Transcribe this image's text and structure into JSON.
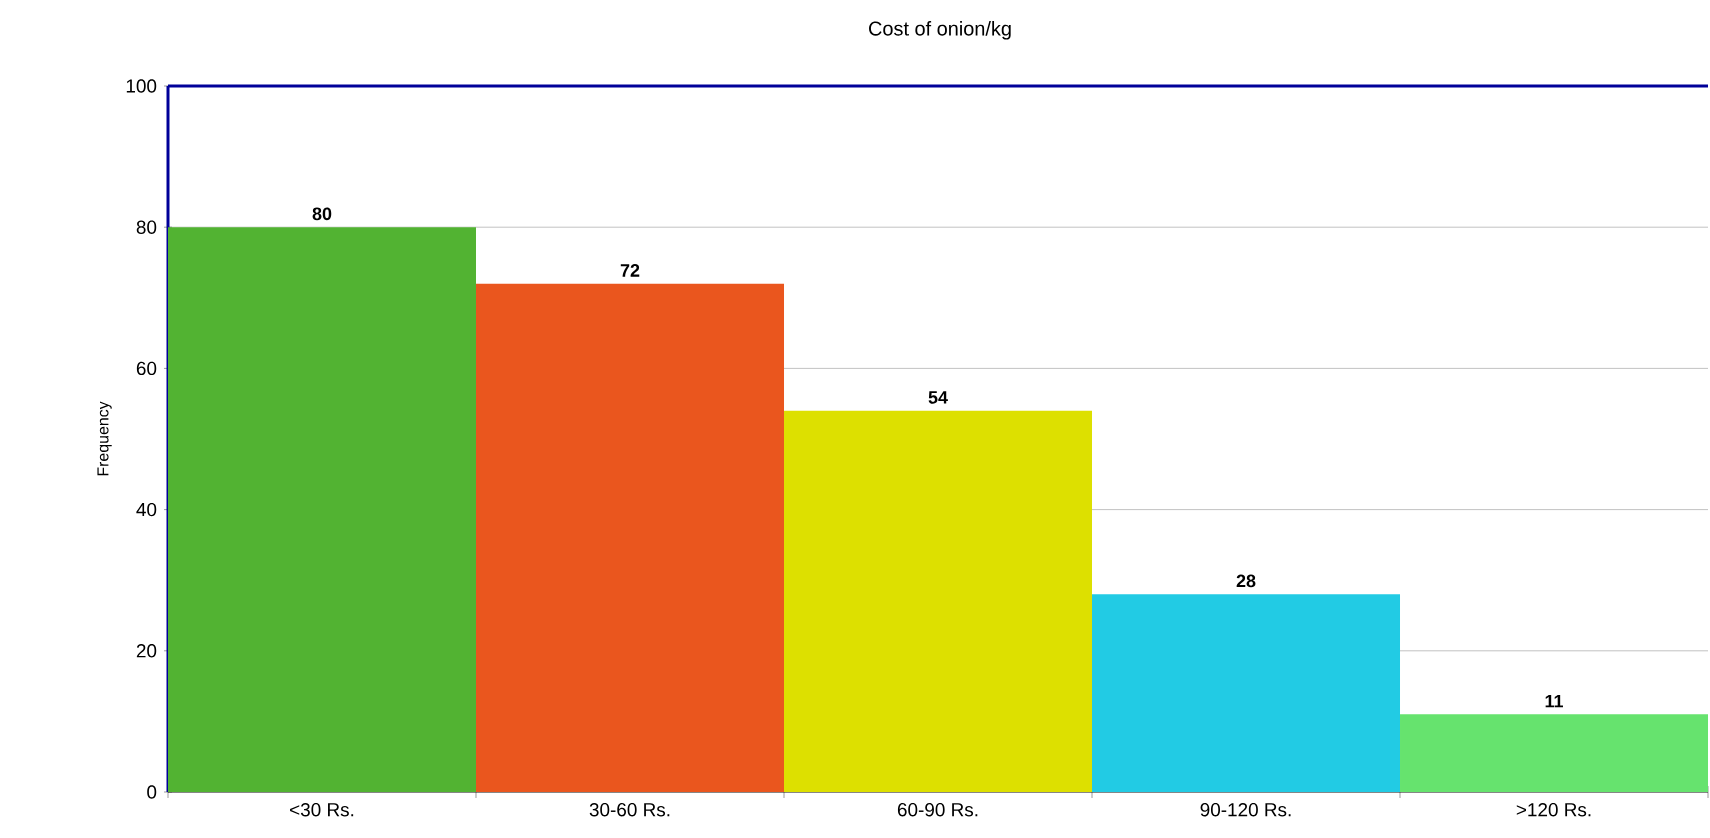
{
  "chart_data": {
    "type": "bar",
    "title": "Cost of onion/kg",
    "ylabel": "Frequency",
    "categories": [
      "<30 Rs.",
      "30-60 Rs.",
      "60-90 Rs.",
      "90-120 Rs.",
      ">120 Rs."
    ],
    "values": [
      80,
      72,
      54,
      28,
      11
    ],
    "colors": [
      "#52b332",
      "#ea561e",
      "#dde000",
      "#22cbe4",
      "#66e36e"
    ],
    "ylim": [
      0,
      100
    ],
    "yticks": [
      0,
      20,
      40,
      60,
      80,
      100
    ],
    "grid": "y",
    "data_labels": true
  }
}
